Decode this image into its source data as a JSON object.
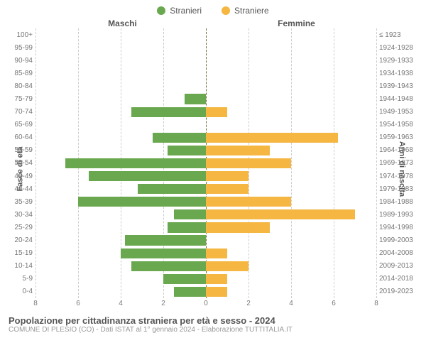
{
  "legend": {
    "male_label": "Stranieri",
    "female_label": "Straniere"
  },
  "headers": {
    "left": "Maschi",
    "right": "Femmine"
  },
  "axis_titles": {
    "left": "Fasce di età",
    "right": "Anni di nascita"
  },
  "chart": {
    "type": "population-pyramid",
    "xmax": 8,
    "xticks": [
      8,
      6,
      4,
      2,
      0,
      2,
      4,
      6,
      8
    ],
    "male_color": "#6aa84f",
    "female_color": "#f5b642",
    "grid_color": "#cccccc",
    "center_color": "#6b6b2e",
    "background_color": "#ffffff",
    "bar_height_ratio": 0.78,
    "label_fontsize": 10,
    "rows": [
      {
        "age": "100+",
        "birth": "≤ 1923",
        "m": 0,
        "f": 0
      },
      {
        "age": "95-99",
        "birth": "1924-1928",
        "m": 0,
        "f": 0
      },
      {
        "age": "90-94",
        "birth": "1929-1933",
        "m": 0,
        "f": 0
      },
      {
        "age": "85-89",
        "birth": "1934-1938",
        "m": 0,
        "f": 0
      },
      {
        "age": "80-84",
        "birth": "1939-1943",
        "m": 0,
        "f": 0
      },
      {
        "age": "75-79",
        "birth": "1944-1948",
        "m": 1,
        "f": 0
      },
      {
        "age": "70-74",
        "birth": "1949-1953",
        "m": 3.5,
        "f": 1
      },
      {
        "age": "65-69",
        "birth": "1954-1958",
        "m": 0,
        "f": 0
      },
      {
        "age": "60-64",
        "birth": "1959-1963",
        "m": 2.5,
        "f": 6.2
      },
      {
        "age": "55-59",
        "birth": "1964-1968",
        "m": 1.8,
        "f": 3
      },
      {
        "age": "50-54",
        "birth": "1969-1973",
        "m": 6.6,
        "f": 4
      },
      {
        "age": "45-49",
        "birth": "1974-1978",
        "m": 5.5,
        "f": 2
      },
      {
        "age": "40-44",
        "birth": "1979-1983",
        "m": 3.2,
        "f": 2
      },
      {
        "age": "35-39",
        "birth": "1984-1988",
        "m": 6,
        "f": 4
      },
      {
        "age": "30-34",
        "birth": "1989-1993",
        "m": 1.5,
        "f": 7
      },
      {
        "age": "25-29",
        "birth": "1994-1998",
        "m": 1.8,
        "f": 3
      },
      {
        "age": "20-24",
        "birth": "1999-2003",
        "m": 3.8,
        "f": 0
      },
      {
        "age": "15-19",
        "birth": "2004-2008",
        "m": 4,
        "f": 1
      },
      {
        "age": "10-14",
        "birth": "2009-2013",
        "m": 3.5,
        "f": 2
      },
      {
        "age": "5-9",
        "birth": "2014-2018",
        "m": 2,
        "f": 1
      },
      {
        "age": "0-4",
        "birth": "2019-2023",
        "m": 1.5,
        "f": 1
      }
    ]
  },
  "footer": {
    "title": "Popolazione per cittadinanza straniera per età e sesso - 2024",
    "subtitle": "COMUNE DI PLESIO (CO) - Dati ISTAT al 1° gennaio 2024 - Elaborazione TUTTITALIA.IT"
  }
}
